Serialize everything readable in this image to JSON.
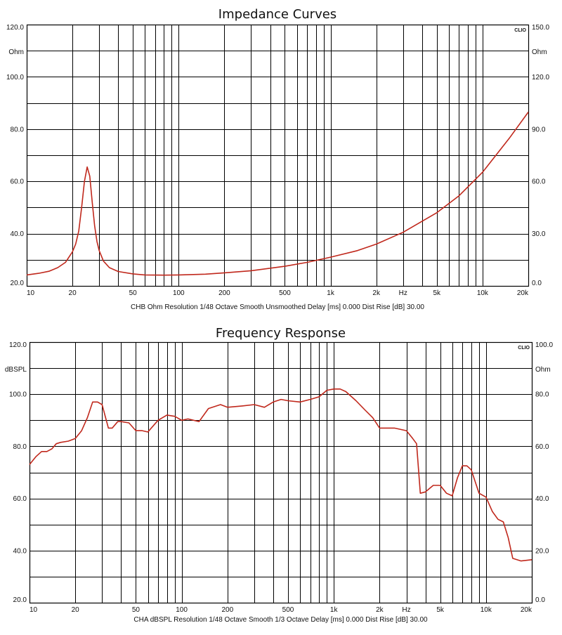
{
  "chart_data": [
    {
      "type": "line",
      "title": "Impedance Curves",
      "brand": "CLIO",
      "footer": "CHB Ohm Resolution 1/48 Octave Smooth Unsmoothed Delay [ms] 0.000 Dist Rise [dB] 30.00",
      "x_scale": "log",
      "xlim": [
        10,
        20000
      ],
      "ylim": [
        20,
        120
      ],
      "y2lim": [
        0,
        150
      ],
      "left_unit": "Ohm",
      "right_unit": "Ohm",
      "x_unit": "Hz",
      "x_ticks": [
        10,
        20,
        50,
        100,
        200,
        500,
        1000,
        2000,
        5000,
        10000,
        20000
      ],
      "x_tick_labels": [
        "10",
        "20",
        "50",
        "100",
        "200",
        "500",
        "1k",
        "2k",
        "5k",
        "10k",
        "20k"
      ],
      "y_ticks": [
        20,
        40,
        60,
        80,
        100,
        120
      ],
      "y_tick_labels": [
        "20.0",
        "40.0",
        "60.0",
        "80.0",
        "100.0",
        "120.0"
      ],
      "y2_ticks": [
        0,
        30,
        60,
        90,
        120,
        150
      ],
      "y2_tick_labels": [
        "0.0",
        "30.0",
        "60.0",
        "90.0",
        "120.0",
        "150.0"
      ],
      "grid": true,
      "line_color": "#c0281c",
      "series": [
        {
          "x": [
            10,
            12,
            14,
            16,
            18,
            20,
            21,
            22,
            23,
            24,
            25,
            26,
            27,
            28,
            29,
            30,
            32,
            35,
            40,
            50,
            60,
            80,
            100,
            150,
            200,
            300,
            500,
            700,
            1000,
            1500,
            2000,
            3000,
            5000,
            7000,
            10000,
            15000,
            20000
          ],
          "y": [
            24.2,
            24.8,
            25.6,
            27,
            29,
            33,
            36,
            41,
            50,
            60,
            65.5,
            62,
            52,
            43,
            37,
            33.5,
            29.5,
            27,
            25.5,
            24.6,
            24.2,
            24.1,
            24.2,
            24.5,
            25,
            25.8,
            27.5,
            29,
            31,
            33.5,
            36,
            40.5,
            48,
            54.5,
            63.5,
            76.5,
            86.5
          ]
        }
      ]
    },
    {
      "type": "line",
      "title": "Frequency Response",
      "brand": "CLIO",
      "footer": "CHA dBSPL Resolution 1/48 Octave Smooth 1/3 Octave Delay [ms] 0.000 Dist Rise [dB] 30.00",
      "x_scale": "log",
      "xlim": [
        10,
        20000
      ],
      "ylim": [
        20,
        120
      ],
      "y2lim": [
        0,
        100
      ],
      "left_unit": "dBSPL",
      "right_unit": "Ohm",
      "x_unit": "Hz",
      "x_ticks": [
        10,
        20,
        50,
        100,
        200,
        500,
        1000,
        2000,
        5000,
        10000,
        20000
      ],
      "x_tick_labels": [
        "10",
        "20",
        "50",
        "100",
        "200",
        "500",
        "1k",
        "2k",
        "5k",
        "10k",
        "20k"
      ],
      "y_ticks": [
        20,
        40,
        60,
        80,
        100,
        120
      ],
      "y_tick_labels": [
        "20.0",
        "40.0",
        "60.0",
        "80.0",
        "100.0",
        "120.0"
      ],
      "y2_ticks": [
        0,
        20,
        40,
        60,
        80,
        100
      ],
      "y2_tick_labels": [
        "0.0",
        "20.0",
        "40.0",
        "60.0",
        "80.0",
        "100.0"
      ],
      "grid": true,
      "line_color": "#c0281c",
      "series": [
        {
          "x": [
            10,
            11,
            12,
            13,
            14,
            15,
            16,
            18,
            20,
            22,
            24,
            26,
            28,
            30,
            33,
            35,
            38,
            40,
            45,
            50,
            55,
            60,
            70,
            80,
            90,
            100,
            110,
            130,
            150,
            180,
            200,
            250,
            300,
            350,
            400,
            450,
            500,
            600,
            700,
            800,
            900,
            1000,
            1100,
            1200,
            1400,
            1600,
            1800,
            2000,
            2500,
            3000,
            3300,
            3500,
            3700,
            4000,
            4500,
            5000,
            5500,
            6000,
            6500,
            7000,
            7500,
            8000,
            9000,
            10000,
            11000,
            12000,
            13000,
            14000,
            15000,
            17000,
            20000
          ],
          "y": [
            73,
            76,
            78,
            78,
            79,
            81,
            81.5,
            82,
            83,
            86,
            91,
            97,
            97,
            96,
            87,
            87,
            89.5,
            89.5,
            89,
            86,
            86,
            85.5,
            90,
            92,
            91.5,
            90,
            90.5,
            89.5,
            94.5,
            96,
            95,
            95.5,
            96,
            95,
            97,
            98,
            97.5,
            97,
            98,
            99,
            101.5,
            102,
            102,
            101,
            97.5,
            94,
            91,
            87,
            87,
            86,
            83,
            81,
            62,
            62.5,
            65,
            65,
            62,
            61,
            68,
            72.5,
            72.5,
            71,
            62,
            60.5,
            55,
            52,
            51,
            45,
            37,
            36,
            36.5
          ]
        }
      ]
    }
  ]
}
